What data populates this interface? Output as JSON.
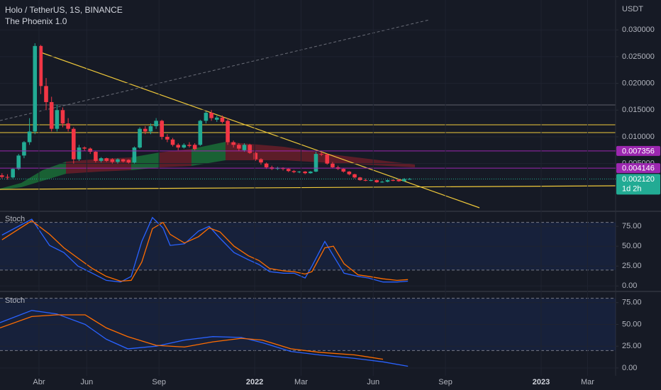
{
  "chart_data": [
    {
      "type": "candlestick",
      "title": "Holo / TetherUS, 1S, BINANCE",
      "subtitle": "The Phoenix 1.0",
      "y_unit": "USDT",
      "up_color": "#22ab94",
      "down_color": "#f23645",
      "grid": true,
      "xlim": [
        2021.111,
        2023.26
      ],
      "ylim": [
        -0.0038,
        0.0356
      ],
      "yticks": [
        {
          "value": 0.03,
          "label": "0.030000"
        },
        {
          "value": 0.025,
          "label": "0.025000"
        },
        {
          "value": 0.02,
          "label": "0.020000"
        },
        {
          "value": 0.015,
          "label": "0.015000"
        },
        {
          "value": 0.01,
          "label": "0.010000"
        },
        {
          "value": 0.005,
          "label": "0.005000"
        }
      ],
      "x": [
        2021.118,
        2021.137,
        2021.156,
        2021.176,
        2021.195,
        2021.214,
        2021.233,
        2021.253,
        2021.272,
        2021.291,
        2021.31,
        2021.33,
        2021.349,
        2021.368,
        2021.387,
        2021.406,
        2021.426,
        2021.445,
        2021.464,
        2021.483,
        2021.503,
        2021.522,
        2021.541,
        2021.56,
        2021.58,
        2021.599,
        2021.618,
        2021.637,
        2021.656,
        2021.676,
        2021.695,
        2021.714,
        2021.733,
        2021.753,
        2021.772,
        2021.791,
        2021.81,
        2021.83,
        2021.849,
        2021.868,
        2021.887,
        2021.906,
        2021.926,
        2021.945,
        2021.964,
        2021.983,
        2022.003,
        2022.022,
        2022.041,
        2022.06,
        2022.08,
        2022.099,
        2022.118,
        2022.137,
        2022.156,
        2022.176,
        2022.195,
        2022.214,
        2022.233,
        2022.253,
        2022.272,
        2022.291,
        2022.31,
        2022.33,
        2022.349,
        2022.368,
        2022.387,
        2022.406,
        2022.426,
        2022.445,
        2022.464,
        2022.483,
        2022.503,
        2022.522,
        2022.541
      ],
      "open": [
        0.0028,
        0.0025,
        0.0024,
        0.004,
        0.0065,
        0.009,
        0.011,
        0.027,
        0.0195,
        0.0165,
        0.0115,
        0.015,
        0.0125,
        0.0115,
        0.0058,
        0.008,
        0.0078,
        0.0072,
        0.0055,
        0.006,
        0.0058,
        0.0053,
        0.0058,
        0.0057,
        0.0052,
        0.008,
        0.0115,
        0.011,
        0.012,
        0.013,
        0.01,
        0.0095,
        0.0085,
        0.008,
        0.0085,
        0.0085,
        0.0085,
        0.013,
        0.0145,
        0.0132,
        0.0136,
        0.013,
        0.009,
        0.0085,
        0.0075,
        0.0085,
        0.007,
        0.0058,
        0.005,
        0.0043,
        0.004,
        0.0042,
        0.004,
        0.0036,
        0.0034,
        0.0035,
        0.0032,
        0.0035,
        0.0068,
        0.0067,
        0.005,
        0.0043,
        0.004,
        0.0035,
        0.003,
        0.0024,
        0.0019,
        0.0018,
        0.0019,
        0.0015,
        0.0016,
        0.0019,
        0.002,
        0.0017,
        0.0021
      ],
      "high": [
        0.0032,
        0.003,
        0.0042,
        0.0068,
        0.0092,
        0.0135,
        0.0275,
        0.0272,
        0.021,
        0.0175,
        0.016,
        0.0155,
        0.0135,
        0.0118,
        0.0085,
        0.0082,
        0.008,
        0.0074,
        0.0062,
        0.0061,
        0.006,
        0.006,
        0.0059,
        0.0058,
        0.0082,
        0.0118,
        0.012,
        0.0125,
        0.0135,
        0.0132,
        0.0105,
        0.0098,
        0.0088,
        0.0088,
        0.009,
        0.0088,
        0.0132,
        0.0148,
        0.015,
        0.014,
        0.014,
        0.0135,
        0.0093,
        0.0088,
        0.0088,
        0.0087,
        0.0072,
        0.006,
        0.0052,
        0.0046,
        0.0044,
        0.0043,
        0.0041,
        0.0038,
        0.0036,
        0.0036,
        0.0036,
        0.0072,
        0.0072,
        0.0069,
        0.0053,
        0.0046,
        0.0041,
        0.0036,
        0.0031,
        0.0025,
        0.0022,
        0.002,
        0.002,
        0.0018,
        0.002,
        0.0021,
        0.0021,
        0.0023,
        0.0023
      ],
      "low": [
        0.0022,
        0.002,
        0.0022,
        0.0038,
        0.006,
        0.0085,
        0.0105,
        0.018,
        0.015,
        0.011,
        0.011,
        0.0118,
        0.011,
        0.005,
        0.0055,
        0.0074,
        0.0068,
        0.0052,
        0.0052,
        0.0053,
        0.005,
        0.005,
        0.0052,
        0.005,
        0.005,
        0.0078,
        0.0105,
        0.0105,
        0.0115,
        0.0095,
        0.009,
        0.0082,
        0.0075,
        0.0078,
        0.008,
        0.0075,
        0.0083,
        0.0125,
        0.013,
        0.0128,
        0.0125,
        0.0085,
        0.008,
        0.0074,
        0.0072,
        0.0068,
        0.0055,
        0.0048,
        0.004,
        0.0038,
        0.0038,
        0.0037,
        0.0034,
        0.0032,
        0.0032,
        0.003,
        0.0031,
        0.0034,
        0.0064,
        0.0048,
        0.0041,
        0.0038,
        0.0033,
        0.0028,
        0.0022,
        0.0018,
        0.0017,
        0.0017,
        0.0014,
        0.0014,
        0.0015,
        0.0017,
        0.0016,
        0.0016,
        0.002
      ],
      "close": [
        0.0025,
        0.0024,
        0.004,
        0.0065,
        0.009,
        0.011,
        0.027,
        0.0195,
        0.0165,
        0.0115,
        0.015,
        0.0125,
        0.0115,
        0.0058,
        0.008,
        0.0078,
        0.0072,
        0.0055,
        0.006,
        0.0055,
        0.0053,
        0.0058,
        0.0054,
        0.0052,
        0.008,
        0.0115,
        0.011,
        0.012,
        0.013,
        0.01,
        0.0095,
        0.0085,
        0.008,
        0.0085,
        0.0083,
        0.0077,
        0.013,
        0.0145,
        0.0135,
        0.0136,
        0.0128,
        0.009,
        0.0085,
        0.0078,
        0.0085,
        0.007,
        0.0058,
        0.0052,
        0.0043,
        0.004,
        0.0042,
        0.004,
        0.0036,
        0.0034,
        0.0035,
        0.0032,
        0.0035,
        0.0068,
        0.0067,
        0.005,
        0.0043,
        0.004,
        0.0035,
        0.003,
        0.0024,
        0.0019,
        0.0018,
        0.0019,
        0.0015,
        0.0016,
        0.0019,
        0.0018,
        0.0017,
        0.0021,
        0.00212
      ],
      "price_labels": [
        {
          "value": 0.007356,
          "label": "0.007356",
          "color": "#9c27b0"
        },
        {
          "value": 0.004146,
          "label": "0.004146",
          "color": "#9c27b0"
        },
        {
          "value": 0.00212,
          "label": "0.002120",
          "color": "#22ab94"
        }
      ],
      "countdown": "1d 2h"
    },
    {
      "type": "line",
      "title": "Stoch",
      "grid": true,
      "band": [
        20,
        80
      ],
      "xlim": [
        2021.111,
        2023.26
      ],
      "ylim": [
        -6,
        93
      ],
      "yticks": [
        {
          "value": 75,
          "label": "75.00"
        },
        {
          "value": 50,
          "label": "50.00"
        },
        {
          "value": 25,
          "label": "25.00"
        },
        {
          "value": 0,
          "label": "0.00"
        }
      ],
      "x": [
        2021.118,
        2021.222,
        2021.284,
        2021.334,
        2021.383,
        2021.433,
        2021.482,
        2021.532,
        2021.569,
        2021.606,
        2021.643,
        2021.68,
        2021.705,
        2021.755,
        2021.804,
        2021.841,
        2021.879,
        2021.928,
        2021.978,
        2022.015,
        2022.052,
        2022.101,
        2022.138,
        2022.176,
        2022.2,
        2022.245,
        2022.275,
        2022.312,
        2022.361,
        2022.398,
        2022.448,
        2022.497,
        2022.535
      ],
      "series": [
        {
          "color": "#2962ff",
          "values": [
            64,
            84,
            51,
            42,
            25,
            16,
            7,
            5,
            12,
            56,
            86,
            73,
            51,
            53,
            69,
            75,
            60,
            42,
            33,
            27,
            18,
            16,
            16,
            10,
            25,
            56,
            38,
            16,
            12,
            10,
            5,
            5,
            6
          ]
        },
        {
          "color": "#ff6d00",
          "values": [
            58,
            82,
            65,
            48,
            35,
            22,
            12,
            6,
            7,
            30,
            72,
            80,
            65,
            54,
            62,
            73,
            68,
            50,
            38,
            32,
            22,
            19,
            18,
            15,
            18,
            48,
            50,
            28,
            14,
            12,
            9,
            7,
            8
          ]
        }
      ]
    },
    {
      "type": "line",
      "title": "Stoch",
      "grid": true,
      "band": [
        20,
        80
      ],
      "xlim": [
        2021.111,
        2023.26
      ],
      "ylim": [
        -9,
        87
      ],
      "yticks": [
        {
          "value": 75,
          "label": "75.00"
        },
        {
          "value": 50,
          "label": "50.00"
        },
        {
          "value": 25,
          "label": "25.00"
        },
        {
          "value": 0,
          "label": "0.00"
        }
      ],
      "xticks": [
        {
          "value": 2021.247,
          "label": "Abr"
        },
        {
          "value": 2021.414,
          "label": "Jun"
        },
        {
          "value": 2021.666,
          "label": "Sep"
        },
        2022,
        {
          "value": 2022.162,
          "label": "Mar"
        },
        {
          "value": 2022.414,
          "label": "Jun"
        },
        {
          "value": 2022.666,
          "label": "Sep"
        },
        2023,
        {
          "value": 2023.162,
          "label": "Mar"
        }
      ],
      "x": [
        2021.111,
        2021.222,
        2021.309,
        2021.408,
        2021.482,
        2021.557,
        2021.656,
        2021.755,
        2021.854,
        2021.953,
        2022.027,
        2022.126,
        2022.225,
        2022.349,
        2022.448,
        2022.535
      ],
      "series": [
        {
          "color": "#2962ff",
          "values": [
            52,
            66,
            62,
            50,
            33,
            22,
            25,
            32,
            36,
            35,
            29,
            19,
            15,
            11,
            7,
            2
          ]
        },
        {
          "color": "#ff6d00",
          "values": [
            46,
            59,
            61,
            61,
            46,
            36,
            26,
            24,
            30,
            34,
            32,
            22,
            18,
            15,
            10,
            null
          ]
        }
      ]
    }
  ]
}
